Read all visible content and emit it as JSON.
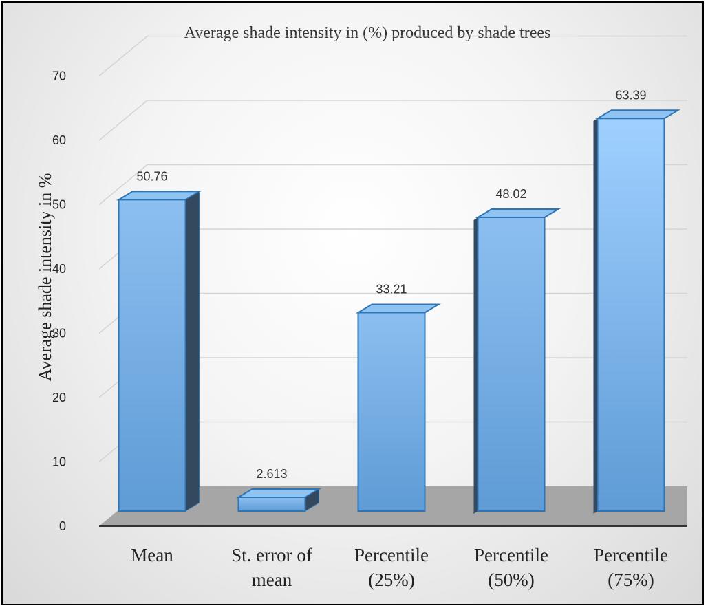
{
  "chart_data": {
    "type": "bar",
    "title": "Average shade intensity in (%) produced by shade trees",
    "ylabel": "Average shade intensity in %",
    "xlabel": "",
    "categories": [
      [
        "Mean"
      ],
      [
        "St. error of",
        "mean"
      ],
      [
        "Percentile",
        "(25%)"
      ],
      [
        "Percentile",
        "(50%)"
      ],
      [
        "Percentile",
        "(75%)"
      ]
    ],
    "values": [
      50.76,
      2.613,
      33.21,
      48.02,
      63.39
    ],
    "data_labels": [
      "50.76",
      "2.613",
      "33.21",
      "48.02",
      "63.39"
    ],
    "ylim": [
      0,
      70
    ],
    "yticks": [
      0,
      10,
      20,
      30,
      40,
      50,
      60,
      70
    ],
    "grid": true,
    "style": "3d-bar",
    "colors": {
      "bar": "#6fa8dc",
      "bar_edge": "#2e75b6",
      "floor": "#a6a6a6",
      "side_dark": "#34495e"
    }
  }
}
